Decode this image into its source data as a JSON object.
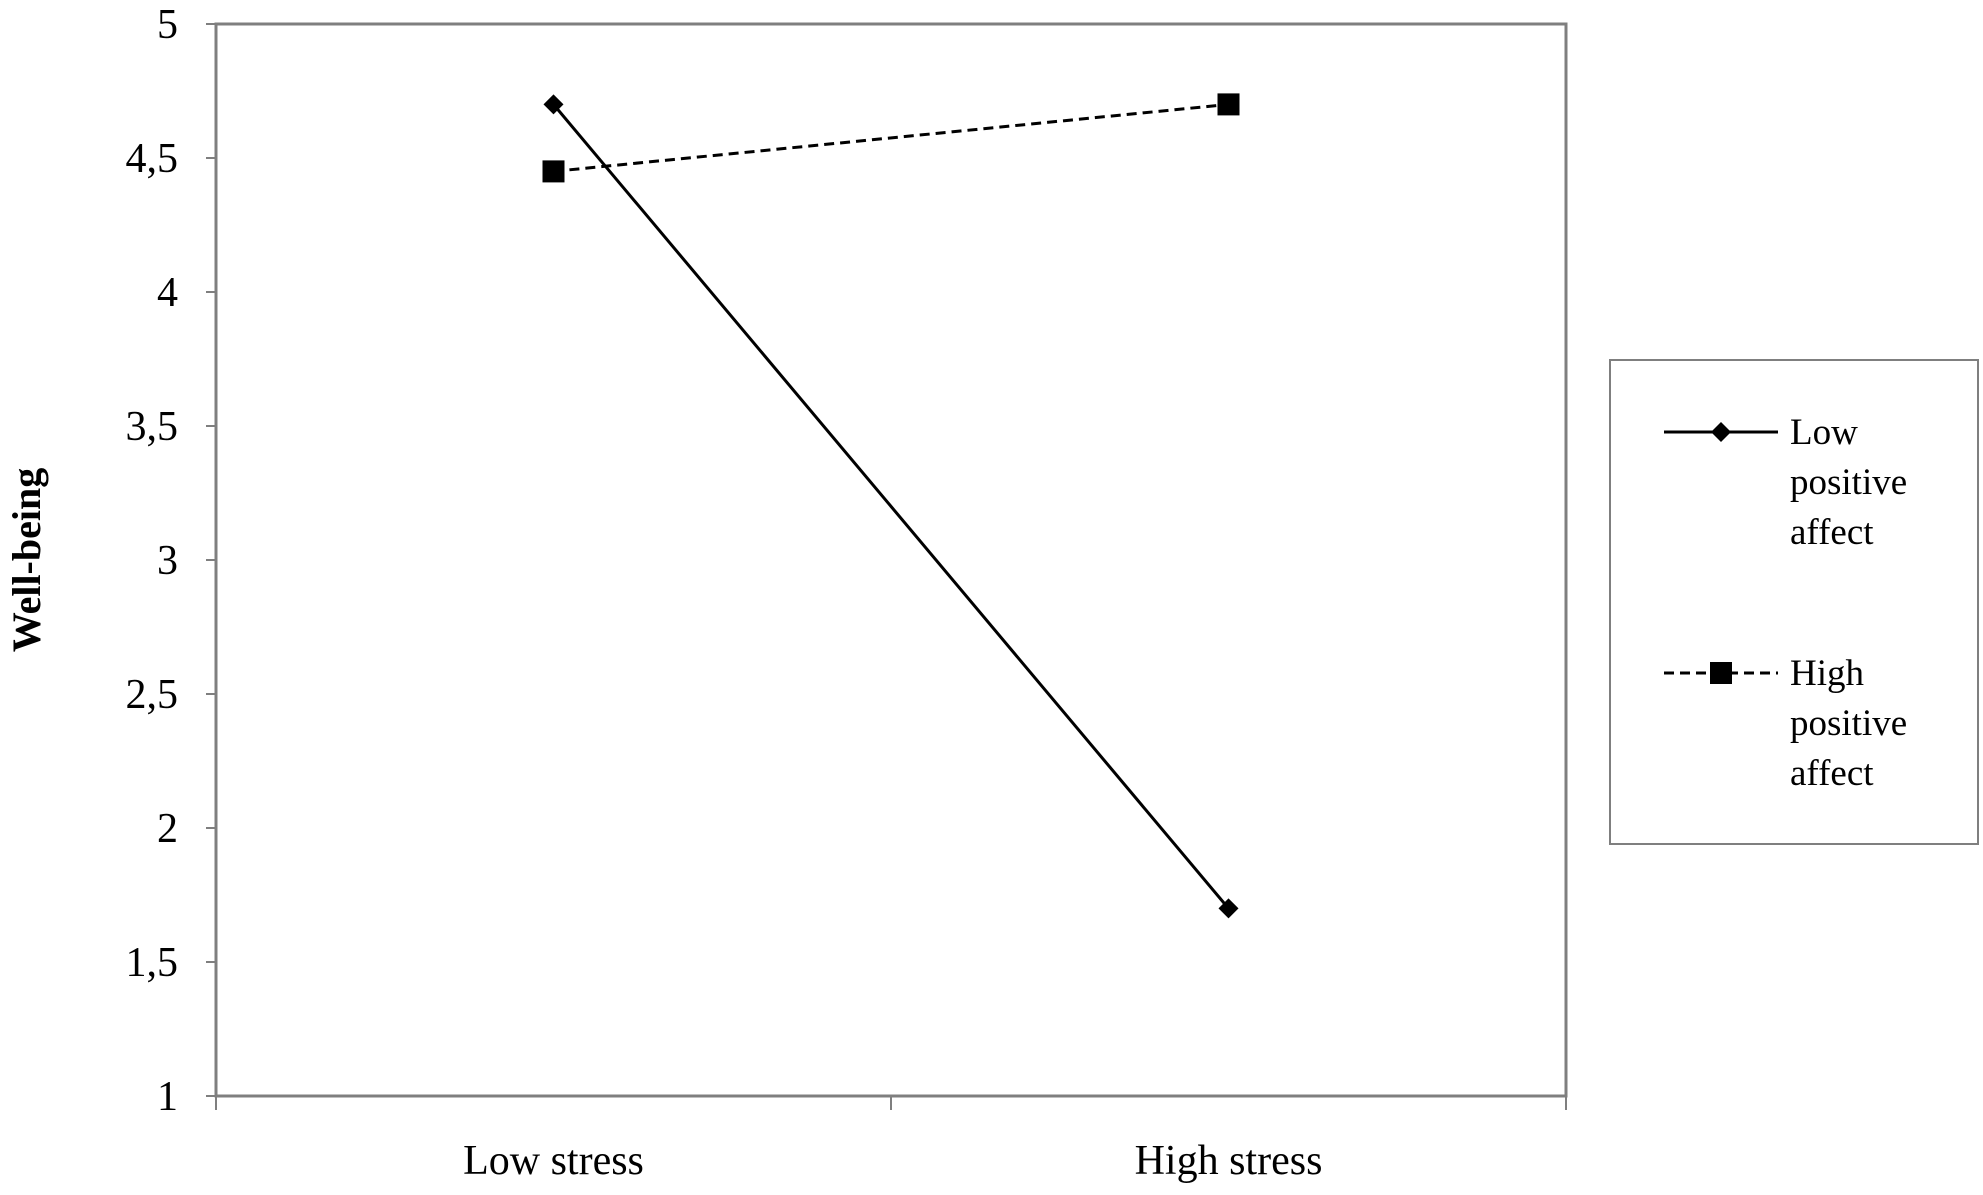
{
  "chart_data": {
    "type": "line",
    "title": "",
    "xlabel": "",
    "ylabel": "Well-being",
    "categories": [
      "Low stress",
      "High stress"
    ],
    "y_ticks": [
      "1",
      "1,5",
      "2",
      "2,5",
      "3",
      "3,5",
      "4",
      "4,5",
      "5"
    ],
    "ylim": [
      1,
      5
    ],
    "grid": false,
    "legend_position": "right",
    "series": [
      {
        "name": "Low positive affect",
        "legend_lines": [
          "Low",
          "positive",
          "affect"
        ],
        "values": [
          4.7,
          1.7
        ],
        "marker": "diamond",
        "line_style": "solid",
        "color": "#000000"
      },
      {
        "name": "High positive affect",
        "legend_lines": [
          "High",
          "positive",
          "affect"
        ],
        "values": [
          4.45,
          4.7
        ],
        "marker": "square",
        "line_style": "dashed",
        "color": "#000000"
      }
    ]
  }
}
